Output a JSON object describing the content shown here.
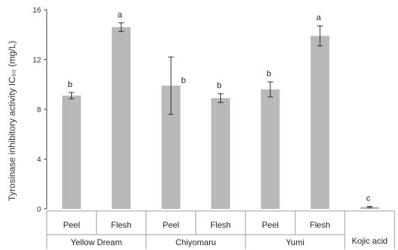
{
  "chart_data": {
    "type": "bar",
    "ylabel": "Tyrosinase inhibitory activity IC₅₀ (mg/L)",
    "ylim": [
      0,
      16
    ],
    "yticks": [
      0,
      4,
      8,
      12,
      16
    ],
    "grid": false,
    "bars": [
      {
        "label": "Peel",
        "group": "Yellow Dream",
        "value": 9.1,
        "err": 0.25,
        "letter": "b"
      },
      {
        "label": "Flesh",
        "group": "Yellow Dream",
        "value": 14.6,
        "err": 0.35,
        "letter": "a"
      },
      {
        "label": "Peel",
        "group": "Chiyomaru",
        "value": 9.9,
        "err": 2.3,
        "letter": "b"
      },
      {
        "label": "Flesh",
        "group": "Chiyomaru",
        "value": 8.9,
        "err": 0.35,
        "letter": "b"
      },
      {
        "label": "Peel",
        "group": "Yumi",
        "value": 9.6,
        "err": 0.6,
        "letter": "b"
      },
      {
        "label": "Flesh",
        "group": "Yumi",
        "value": 13.9,
        "err": 0.8,
        "letter": "a"
      },
      {
        "label": "",
        "group": "Kojic acid",
        "value": 0.15,
        "err": 0.05,
        "letter": "c"
      }
    ],
    "groups": [
      "Yellow Dream",
      "Chiyomaru",
      "Yumi",
      "Kojic acid"
    ],
    "colors": {
      "bar": "#b9b9b9",
      "axis": "#333333"
    }
  }
}
